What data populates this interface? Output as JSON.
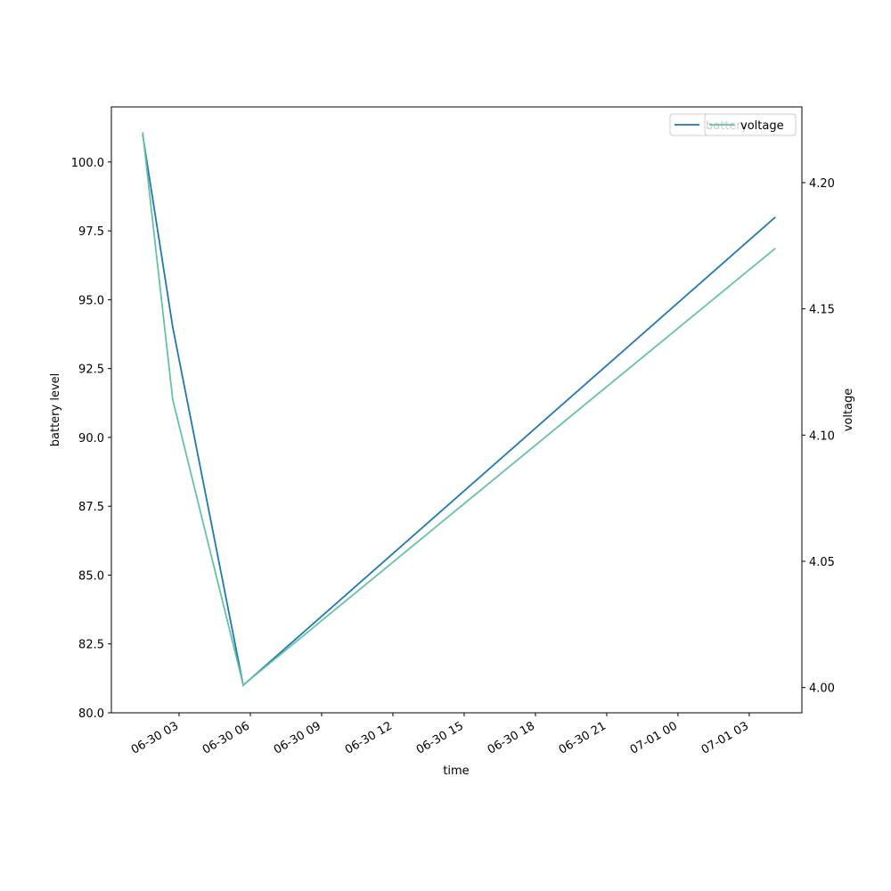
{
  "chart_data": {
    "type": "line",
    "x_label": "time",
    "y_label": "battery level",
    "y2_label": "voltage",
    "x": [
      "06-30 01:28",
      "06-30 02:44",
      "06-30 05:42",
      "07-01 04:06"
    ],
    "series": [
      {
        "name": "battery",
        "color": "#1f77b4",
        "values": [
          101,
          94,
          81,
          98
        ]
      },
      {
        "name": "voltage",
        "color": "#66c2a5",
        "values": [
          4.22,
          4.114,
          4.001,
          4.174
        ],
        "axis": "y2"
      }
    ],
    "xlim": [
      "06-30 00:09",
      "07-01 05:13"
    ],
    "xticks": [
      "06-30 03",
      "06-30 06",
      "06-30 09",
      "06-30 12",
      "06-30 15",
      "06-30 18",
      "06-30 21",
      "07-01 00",
      "07-01 03"
    ],
    "ylim": [
      80,
      102
    ],
    "yticks": [
      {
        "value": 80,
        "label": "80.0"
      },
      {
        "value": 82.5,
        "label": "82.5"
      },
      {
        "value": 85,
        "label": "85.0"
      },
      {
        "value": 87.5,
        "label": "87.5"
      },
      {
        "value": 90,
        "label": "90.0"
      },
      {
        "value": 92.5,
        "label": "92.5"
      },
      {
        "value": 95,
        "label": "95.0"
      },
      {
        "value": 97.5,
        "label": "97.5"
      },
      {
        "value": 100,
        "label": "100.0"
      }
    ],
    "y2lim": [
      3.99,
      4.23
    ],
    "y2ticks": [
      {
        "value": 4.0,
        "label": "4.00"
      },
      {
        "value": 4.05,
        "label": "4.05"
      },
      {
        "value": 4.1,
        "label": "4.10"
      },
      {
        "value": 4.15,
        "label": "4.15"
      },
      {
        "value": 4.2,
        "label": "4.20"
      }
    ],
    "legend": "upper right"
  }
}
